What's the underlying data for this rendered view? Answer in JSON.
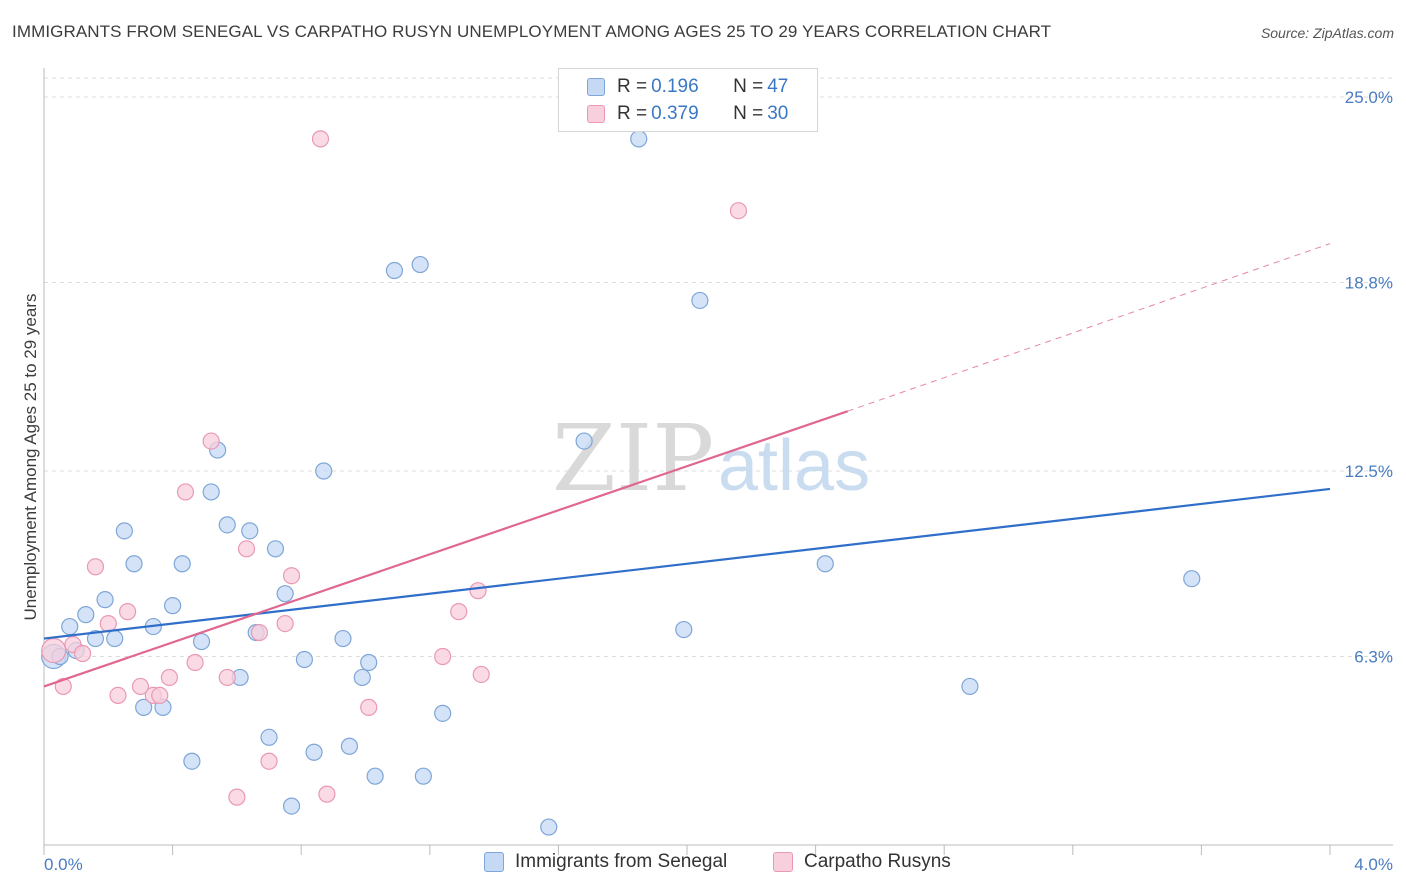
{
  "title": "IMMIGRANTS FROM SENEGAL VS CARPATHO RUSYN UNEMPLOYMENT AMONG AGES 25 TO 29 YEARS CORRELATION CHART",
  "source": "Source: ZipAtlas.com",
  "watermark": {
    "zip": "ZIP",
    "atlas": "atlas"
  },
  "legend": {
    "rows": [
      {
        "r_label": "R = ",
        "r_value": "0.196",
        "n_label": "N = ",
        "n_value": "47"
      },
      {
        "r_label": "R = ",
        "r_value": "0.379",
        "n_label": "N = ",
        "n_value": "30"
      }
    ]
  },
  "bottom_legend": {
    "series1": "Immigrants from Senegal",
    "series2": "Carpatho Rusyns"
  },
  "colors": {
    "blue_fill": "#c5d9f5",
    "blue_stroke": "#7ea6d8",
    "blue_line": "#2f6fc9",
    "pink_fill": "#f8cfdc",
    "pink_stroke": "#ea98b4",
    "pink_line": "#e0678f",
    "grid": "#dcdcdc",
    "axis_text": "#4a7cc0"
  },
  "chart_data": {
    "type": "scatter",
    "title": "IMMIGRANTS FROM SENEGAL VS CARPATHO RUSYN UNEMPLOYMENT AMONG AGES 25 TO 29 YEARS CORRELATION CHART",
    "xlabel": "",
    "ylabel": "Unemployment Among Ages 25 to 29 years",
    "xlim": [
      0.0,
      4.0
    ],
    "ylim": [
      0.0,
      25.0
    ],
    "x_tick_labels": [
      "0.0%",
      "4.0%"
    ],
    "y_ticks": [
      6.3,
      12.5,
      18.8,
      25.0
    ],
    "y_tick_labels": [
      "6.3%",
      "12.5%",
      "18.8%",
      "25.0%"
    ],
    "grid": true,
    "series": [
      {
        "name": "Immigrants from Senegal",
        "r": 0.196,
        "n": 47,
        "trend": {
          "x": [
            0.0,
            4.0
          ],
          "y": [
            6.9,
            11.9
          ]
        },
        "points": [
          {
            "x": 0.03,
            "y": 6.3,
            "big": true
          },
          {
            "x": 0.05,
            "y": 6.3
          },
          {
            "x": 0.08,
            "y": 7.3
          },
          {
            "x": 0.1,
            "y": 6.5
          },
          {
            "x": 0.13,
            "y": 7.7
          },
          {
            "x": 0.16,
            "y": 6.9
          },
          {
            "x": 0.19,
            "y": 8.2
          },
          {
            "x": 0.22,
            "y": 6.9
          },
          {
            "x": 0.25,
            "y": 10.5
          },
          {
            "x": 0.28,
            "y": 9.4
          },
          {
            "x": 0.31,
            "y": 4.6
          },
          {
            "x": 0.34,
            "y": 7.3
          },
          {
            "x": 0.37,
            "y": 4.6
          },
          {
            "x": 0.4,
            "y": 8.0
          },
          {
            "x": 0.43,
            "y": 9.4
          },
          {
            "x": 0.46,
            "y": 2.8
          },
          {
            "x": 0.49,
            "y": 6.8
          },
          {
            "x": 0.52,
            "y": 11.8
          },
          {
            "x": 0.54,
            "y": 13.2
          },
          {
            "x": 0.57,
            "y": 10.7
          },
          {
            "x": 0.61,
            "y": 5.6
          },
          {
            "x": 0.64,
            "y": 10.5
          },
          {
            "x": 0.66,
            "y": 7.1
          },
          {
            "x": 0.7,
            "y": 3.6
          },
          {
            "x": 0.72,
            "y": 9.9
          },
          {
            "x": 0.75,
            "y": 8.4
          },
          {
            "x": 0.77,
            "y": 1.3
          },
          {
            "x": 0.81,
            "y": 6.2
          },
          {
            "x": 0.84,
            "y": 3.1
          },
          {
            "x": 0.87,
            "y": 12.5
          },
          {
            "x": 0.93,
            "y": 6.9
          },
          {
            "x": 0.95,
            "y": 3.3
          },
          {
            "x": 0.99,
            "y": 5.6
          },
          {
            "x": 1.01,
            "y": 6.1
          },
          {
            "x": 1.03,
            "y": 2.3
          },
          {
            "x": 1.09,
            "y": 19.2
          },
          {
            "x": 1.17,
            "y": 19.4
          },
          {
            "x": 1.18,
            "y": 2.3
          },
          {
            "x": 1.24,
            "y": 4.4
          },
          {
            "x": 1.57,
            "y": 0.6
          },
          {
            "x": 1.68,
            "y": 13.5
          },
          {
            "x": 1.85,
            "y": 23.6
          },
          {
            "x": 1.99,
            "y": 7.2
          },
          {
            "x": 2.04,
            "y": 18.2
          },
          {
            "x": 2.43,
            "y": 9.4
          },
          {
            "x": 2.88,
            "y": 5.3
          },
          {
            "x": 3.57,
            "y": 8.9
          }
        ]
      },
      {
        "name": "Carpatho Rusyns",
        "r": 0.379,
        "n": 30,
        "trend": {
          "x": [
            0.0,
            2.5
          ],
          "y": [
            5.3,
            14.5
          ]
        },
        "trend_dashed_to": {
          "x": 4.0,
          "y": 20.1
        },
        "points": [
          {
            "x": 0.03,
            "y": 6.5,
            "big": true
          },
          {
            "x": 0.06,
            "y": 5.3
          },
          {
            "x": 0.09,
            "y": 6.7
          },
          {
            "x": 0.12,
            "y": 6.4
          },
          {
            "x": 0.16,
            "y": 9.3
          },
          {
            "x": 0.2,
            "y": 7.4
          },
          {
            "x": 0.23,
            "y": 5.0
          },
          {
            "x": 0.26,
            "y": 7.8
          },
          {
            "x": 0.3,
            "y": 5.3
          },
          {
            "x": 0.34,
            "y": 5.0
          },
          {
            "x": 0.36,
            "y": 5.0
          },
          {
            "x": 0.39,
            "y": 5.6
          },
          {
            "x": 0.44,
            "y": 11.8
          },
          {
            "x": 0.47,
            "y": 6.1
          },
          {
            "x": 0.52,
            "y": 13.5
          },
          {
            "x": 0.57,
            "y": 5.6
          },
          {
            "x": 0.6,
            "y": 1.6
          },
          {
            "x": 0.63,
            "y": 9.9
          },
          {
            "x": 0.67,
            "y": 7.1
          },
          {
            "x": 0.7,
            "y": 2.8
          },
          {
            "x": 0.75,
            "y": 7.4
          },
          {
            "x": 0.77,
            "y": 9.0
          },
          {
            "x": 0.86,
            "y": 23.6
          },
          {
            "x": 0.88,
            "y": 1.7
          },
          {
            "x": 1.01,
            "y": 4.6
          },
          {
            "x": 1.24,
            "y": 6.3
          },
          {
            "x": 1.29,
            "y": 7.8
          },
          {
            "x": 1.35,
            "y": 8.5
          },
          {
            "x": 1.36,
            "y": 5.7
          },
          {
            "x": 2.16,
            "y": 21.2
          }
        ]
      }
    ]
  }
}
